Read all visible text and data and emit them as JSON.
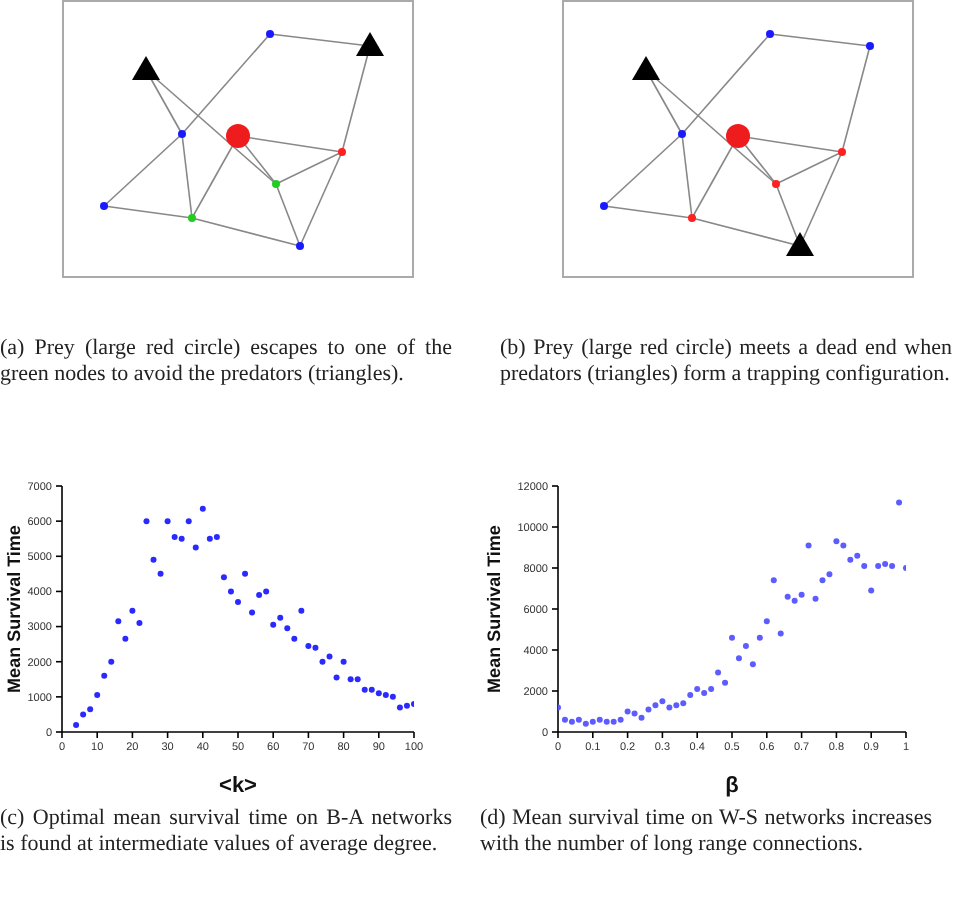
{
  "chart_data": [
    {
      "type": "other",
      "annotations": [
        "(a) Prey (large red circle) escapes to one of the green nodes to avoid the predators (triangles)."
      ]
    },
    {
      "type": "other",
      "annotations": [
        "(b) Prey (large red circle) meets a dead end when predators (triangles) form a trapping configuration."
      ]
    },
    {
      "type": "scatter",
      "xlabel": "<k>",
      "ylabel": "Mean Survival Time",
      "marker": "circle",
      "xlim": [
        0,
        100
      ],
      "xticks": [
        0,
        10,
        20,
        30,
        40,
        50,
        60,
        70,
        80,
        90,
        100
      ],
      "ylim": [
        0,
        7000
      ],
      "yticks": [
        0,
        1000,
        2000,
        3000,
        4000,
        5000,
        6000,
        7000
      ],
      "annotations": [
        "(c) Optimal mean survival time on B-A networks is found at intermediate values of average degree."
      ],
      "series": [
        {
          "color": "#2a2aff",
          "x": [
            4,
            6,
            8,
            10,
            12,
            14,
            16,
            18,
            20,
            22,
            24,
            26,
            28,
            30,
            32,
            34,
            36,
            38,
            40,
            42,
            44,
            46,
            48,
            50,
            52,
            54,
            56,
            58,
            60,
            62,
            64,
            66,
            68,
            70,
            72,
            74,
            76,
            78,
            80,
            82,
            84,
            86,
            88,
            90,
            92,
            94,
            96,
            98,
            100
          ],
          "values": [
            200,
            500,
            650,
            1050,
            1600,
            2000,
            3150,
            2650,
            3450,
            3100,
            6000,
            4900,
            4500,
            6000,
            5550,
            5500,
            6000,
            5250,
            6350,
            5500,
            5550,
            4400,
            4000,
            3700,
            4500,
            3400,
            3900,
            4000,
            3050,
            3250,
            2950,
            2650,
            3450,
            2450,
            2400,
            2000,
            2150,
            1550,
            2000,
            1500,
            1500,
            1200,
            1200,
            1100,
            1050,
            1000,
            700,
            750,
            800
          ]
        }
      ]
    },
    {
      "type": "scatter",
      "xlabel": "β",
      "ylabel": "Mean Survival Time",
      "marker": "circle",
      "xlim": [
        0,
        1
      ],
      "xticks": [
        0,
        0.1,
        0.2,
        0.3,
        0.4,
        0.5,
        0.6,
        0.7,
        0.8,
        0.9,
        1
      ],
      "ylim": [
        0,
        12000
      ],
      "yticks": [
        0,
        2000,
        4000,
        6000,
        8000,
        10000,
        12000
      ],
      "annotations": [
        "(d) Mean survival time on W-S networks increases with the number of long range connections."
      ],
      "series": [
        {
          "color": "#5c5cff",
          "x": [
            0,
            0.02,
            0.04,
            0.06,
            0.08,
            0.1,
            0.12,
            0.14,
            0.16,
            0.18,
            0.2,
            0.22,
            0.24,
            0.26,
            0.28,
            0.3,
            0.32,
            0.34,
            0.36,
            0.38,
            0.4,
            0.42,
            0.44,
            0.46,
            0.48,
            0.5,
            0.52,
            0.54,
            0.56,
            0.58,
            0.6,
            0.62,
            0.64,
            0.66,
            0.68,
            0.7,
            0.72,
            0.74,
            0.76,
            0.78,
            0.8,
            0.82,
            0.84,
            0.86,
            0.88,
            0.9,
            0.92,
            0.94,
            0.96,
            0.98,
            1
          ],
          "values": [
            1200,
            600,
            500,
            600,
            400,
            500,
            600,
            500,
            500,
            600,
            1000,
            900,
            700,
            1100,
            1300,
            1500,
            1200,
            1300,
            1400,
            1800,
            2100,
            1900,
            2100,
            2900,
            2400,
            4600,
            3600,
            4200,
            3300,
            4600,
            5400,
            7400,
            4800,
            6600,
            6400,
            6700,
            9100,
            6500,
            7400,
            7700,
            9300,
            9100,
            8400,
            8600,
            8100,
            6900,
            8100,
            8200,
            8100,
            11200,
            8000
          ]
        }
      ]
    }
  ]
}
